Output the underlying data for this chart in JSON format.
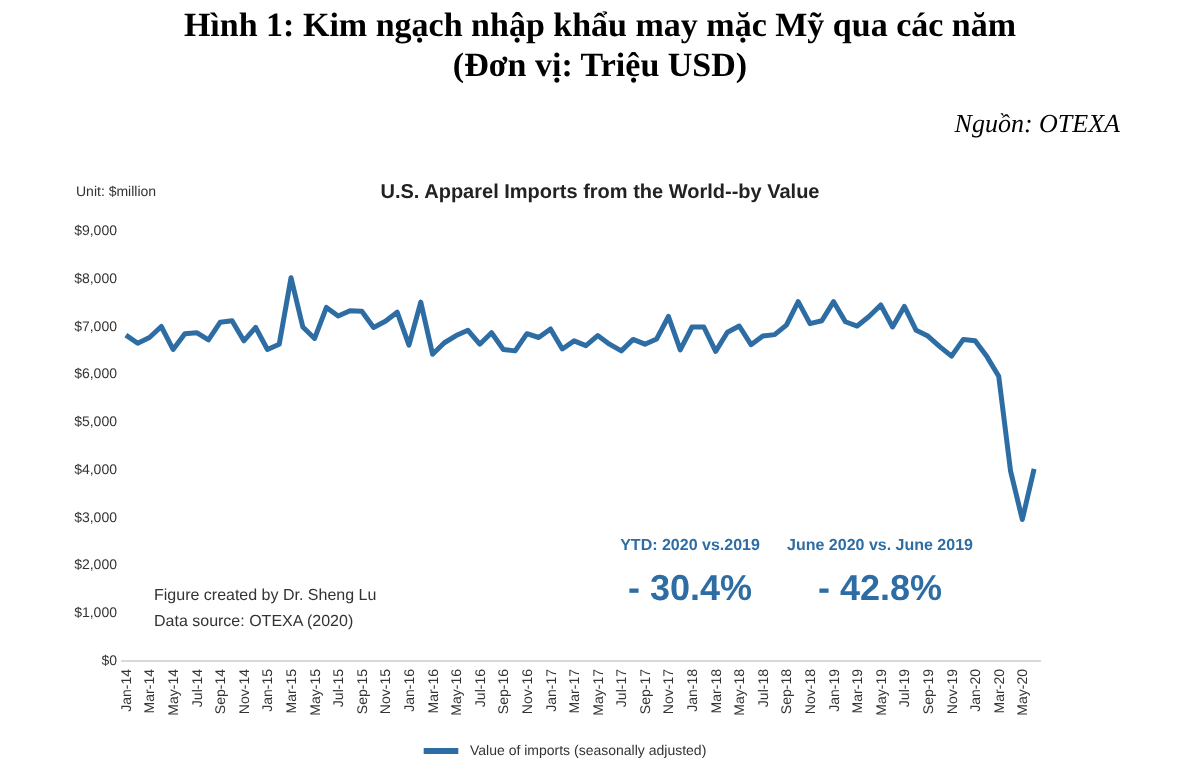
{
  "chart_data": {
    "type": "line",
    "title": "Hình 1: Kim ngạch nhập khẩu may mặc Mỹ qua các năm",
    "subtitle": "(Đơn vị: Triệu USD)",
    "ylabel": "Unit: $million",
    "annotations": [
      "Nguồn: OTEXA",
      "U.S. Apparel Imports from the World--by Value",
      "Figure created by Dr. Sheng Lu",
      "Data source: OTEXA (2020)",
      "YTD: 2020  vs.2019",
      "- 30.4%",
      "June 2020 vs. June 2019",
      "- 42.8%"
    ],
    "categories": [
      "Jan-14",
      null,
      "Mar-14",
      null,
      "May-14",
      null,
      "Jul-14",
      null,
      "Sep-14",
      null,
      "Nov-14",
      null,
      "Jan-15",
      null,
      "Mar-15",
      null,
      "May-15",
      null,
      "Jul-15",
      null,
      "Sep-15",
      null,
      "Nov-15",
      null,
      "Jan-16",
      null,
      "Mar-16",
      null,
      "May-16",
      null,
      "Jul-16",
      null,
      "Sep-16",
      null,
      "Nov-16",
      null,
      "Jan-17",
      null,
      "Mar-17",
      null,
      "May-17",
      null,
      "Jul-17",
      null,
      "Sep-17",
      null,
      "Nov-17",
      null,
      "Jan-18",
      null,
      "Mar-18",
      null,
      "May-18",
      null,
      "Jul-18",
      null,
      "Sep-18",
      null,
      "Nov-18",
      null,
      "Jan-19",
      null,
      "Mar-19",
      null,
      "May-19",
      null,
      "Jul-19",
      null,
      "Sep-19",
      null,
      "Nov-19",
      null,
      "Jan-20",
      null,
      "Mar-20",
      null,
      "May-20",
      null
    ],
    "series": [
      {
        "name": "Value of imports (seasonally adjusted)",
        "color": "#2e6da4",
        "values": [
          6800,
          6630,
          6750,
          6980,
          6500,
          6830,
          6850,
          6700,
          7070,
          7100,
          6680,
          6960,
          6500,
          6610,
          8000,
          6970,
          6730,
          7380,
          7200,
          7310,
          7300,
          6960,
          7090,
          7280,
          6590,
          7490,
          6400,
          6640,
          6790,
          6900,
          6610,
          6850,
          6500,
          6470,
          6830,
          6750,
          6930,
          6510,
          6680,
          6580,
          6790,
          6610,
          6470,
          6710,
          6610,
          6720,
          7190,
          6490,
          6970,
          6970,
          6460,
          6860,
          6990,
          6600,
          6780,
          6810,
          7010,
          7500,
          7040,
          7100,
          7500,
          7080,
          6990,
          7190,
          7430,
          6970,
          7400,
          6900,
          6780,
          6560,
          6360,
          6710,
          6680,
          6350,
          5940,
          3960,
          2940,
          4000
        ]
      }
    ],
    "ylim": [
      0,
      9000
    ],
    "yticks": [
      {
        "value": 0,
        "label": "$0"
      },
      {
        "value": 1000,
        "label": "$1,000"
      },
      {
        "value": 2000,
        "label": "$2,000"
      },
      {
        "value": 3000,
        "label": "$3,000"
      },
      {
        "value": 4000,
        "label": "$4,000"
      },
      {
        "value": 5000,
        "label": "$5,000"
      },
      {
        "value": 6000,
        "label": "$6,000"
      },
      {
        "value": 7000,
        "label": "$7,000"
      },
      {
        "value": 8000,
        "label": "$8,000"
      },
      {
        "value": 9000,
        "label": "$9,000"
      }
    ],
    "grid": false,
    "legend": "bottom",
    "marker": "none",
    "line_style": "solid"
  }
}
